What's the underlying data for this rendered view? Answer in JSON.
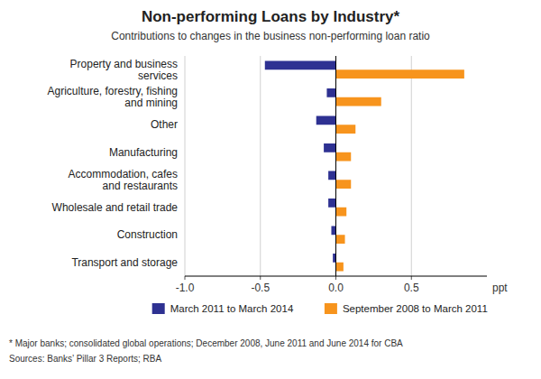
{
  "chart_data": {
    "type": "bar",
    "orientation": "horizontal",
    "title": "Non-performing Loans by Industry*",
    "subtitle": "Contributions to changes in the business non-performing loan ratio",
    "xlabel": "ppt",
    "categories": [
      "Transport and storage",
      "Construction",
      "Wholesale and retail trade",
      "Accommodation, cafes\nand restaurants",
      "Manufacturing",
      "Other",
      "Agriculture, forestry, fishing\nand mining",
      "Property and business\nservices"
    ],
    "series": [
      {
        "name": "March 2011 to March 2014",
        "color": "#2e3192",
        "values": [
          -0.02,
          -0.03,
          -0.05,
          -0.05,
          -0.08,
          -0.13,
          -0.06,
          -0.47
        ]
      },
      {
        "name": "September 2008 to March 2011",
        "color": "#f7941d",
        "values": [
          0.05,
          0.06,
          0.07,
          0.1,
          0.1,
          0.13,
          0.3,
          0.85
        ]
      }
    ],
    "xlim": [
      -1.0,
      1.0
    ],
    "xticks": [
      {
        "value": -1.0,
        "label": "-1.0"
      },
      -0.5,
      {
        "value": 0.0,
        "label": "0.0"
      },
      0.5
    ],
    "grid": true,
    "legend": "bottom",
    "annotations": [
      "* Major banks; consolidated global operations; December 2008, June 2011 and June 2014 for CBA",
      "Sources: Banks’ Pillar 3 Reports; RBA"
    ]
  }
}
